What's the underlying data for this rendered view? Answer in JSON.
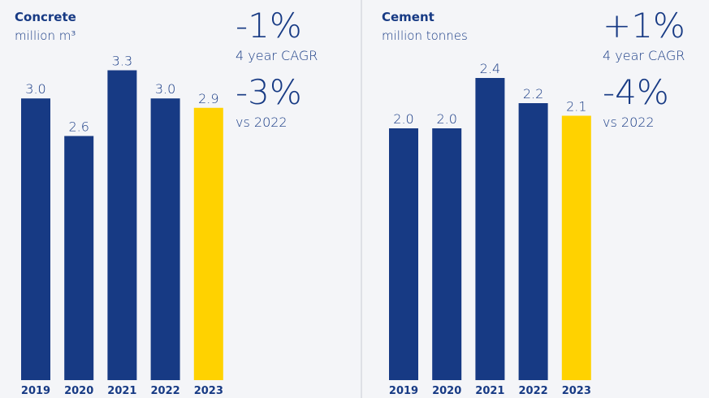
{
  "chart_data": [
    {
      "type": "bar",
      "title": "Concrete",
      "subtitle": "million m³",
      "annotations": [
        "-1%",
        "4 year CAGR",
        "-3%",
        "vs 2022"
      ],
      "categories": [
        "2019",
        "2020",
        "2021",
        "2022",
        "2023"
      ],
      "values": [
        3.0,
        2.6,
        3.3,
        3.0,
        2.9
      ],
      "value_labels": [
        "3.0",
        "2.6",
        "3.3",
        "3.0",
        "2.9"
      ],
      "colors": [
        "#173a84",
        "#173a84",
        "#173a84",
        "#173a84",
        "#ffd200"
      ]
    },
    {
      "type": "bar",
      "title": "Cement",
      "subtitle": "million tonnes",
      "annotations": [
        "+1%",
        "4 year CAGR",
        "-4%",
        "vs 2022"
      ],
      "categories": [
        "2019",
        "2020",
        "2021",
        "2022",
        "2023"
      ],
      "values": [
        2.0,
        2.0,
        2.4,
        2.2,
        2.1
      ],
      "value_labels": [
        "2.0",
        "2.0",
        "2.4",
        "2.2",
        "2.1"
      ],
      "colors": [
        "#173a84",
        "#173a84",
        "#173a84",
        "#173a84",
        "#ffd200"
      ]
    }
  ]
}
